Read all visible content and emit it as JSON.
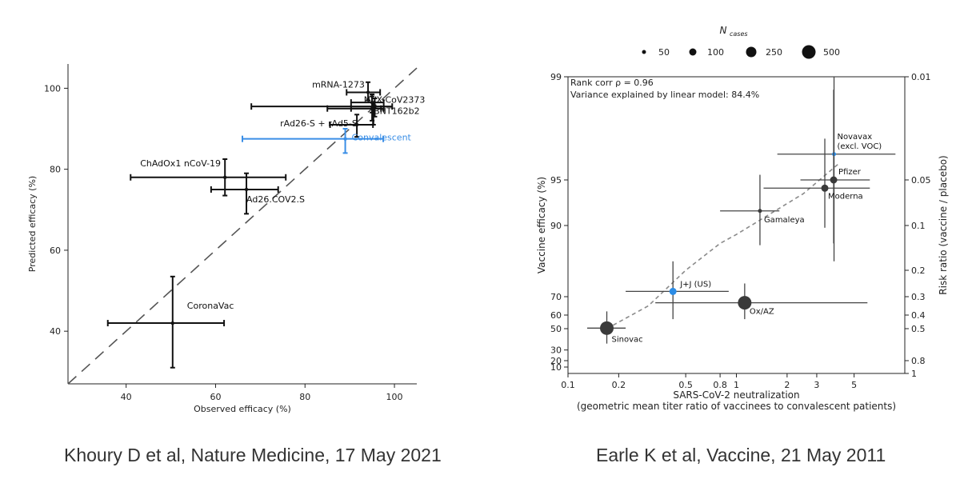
{
  "captions": {
    "left": "Khoury D et al, Nature Medicine, 17 May 2021",
    "right": "Earle K et al, Vaccine, 21 May 2011"
  },
  "chart_data": [
    {
      "type": "scatter",
      "title": "",
      "xlabel": "Observed efficacy (%)",
      "ylabel": "Predicted efficacy (%)",
      "xlim": [
        27,
        105
      ],
      "ylim": [
        27,
        106
      ],
      "xticks": [
        "40",
        "60",
        "80",
        "100"
      ],
      "yticks": [
        "40",
        "60",
        "80",
        "100"
      ],
      "grid": false,
      "diagonal": "y = x (dashed)",
      "points": [
        {
          "label": "mRNA-1273",
          "x": 94.1,
          "y": 99,
          "xerr": [
            89.3,
            96.8
          ],
          "yerr": [
            97,
            101.5
          ],
          "color": "#111111"
        },
        {
          "label": "",
          "x": 95,
          "y": 96.5,
          "xerr": [
            90.3,
            97.6
          ],
          "yerr": [
            94,
            98.5
          ],
          "color": "#111111"
        },
        {
          "label": "",
          "x": 95.6,
          "y": 95.5,
          "xerr": [
            68,
            99.5
          ],
          "yerr": [
            93,
            97.5
          ],
          "color": "#111111"
        },
        {
          "label": "NVX-CoV2373",
          "x": 95.3,
          "y": 95,
          "xerr": [
            85,
            97
          ],
          "yerr": [
            91,
            96.5
          ],
          "color": "#111111"
        },
        {
          "label": "BNT162b2",
          "x": 95,
          "y": 95,
          "xerr": [
            90.3,
            97.6
          ],
          "yerr": [
            92,
            98
          ],
          "color": "#111111"
        },
        {
          "label": "rAd26-S + rAd5-S",
          "x": 91.6,
          "y": 91,
          "xerr": [
            85.6,
            95.2
          ],
          "yerr": [
            88,
            93.5
          ],
          "color": "#111111"
        },
        {
          "label": "Convalescent",
          "x": 89,
          "y": 87.5,
          "xerr": [
            66,
            97.5
          ],
          "yerr": [
            84,
            90
          ],
          "color": "#3a8ee6"
        },
        {
          "label": "ChAdOx1 nCoV-19",
          "x": 62.1,
          "y": 78,
          "xerr": [
            41,
            75.7
          ],
          "yerr": [
            73.5,
            82.5
          ],
          "color": "#111111"
        },
        {
          "label": "Ad26.COV2.S",
          "x": 66.9,
          "y": 75,
          "xerr": [
            59,
            74
          ],
          "yerr": [
            69,
            79
          ],
          "color": "#111111"
        },
        {
          "label": "CoronaVac",
          "x": 50.4,
          "y": 42,
          "xerr": [
            35.9,
            61.9
          ],
          "yerr": [
            31,
            53.5
          ],
          "color": "#111111"
        }
      ]
    },
    {
      "type": "scatter",
      "title": "",
      "xlabel": "SARS-CoV-2 neutralization",
      "xlabel2": "(geometric mean titer ratio of vaccinees to convalescent patients)",
      "ylabel": "Vaccine efficacy (%)",
      "ylabel_right": "Risk ratio (vaccine / placebo)",
      "x_scale": "log",
      "xlim": [
        0.1,
        10
      ],
      "xticks": [
        "0.1",
        "0.2",
        "0.5",
        "0.8",
        "1",
        "2",
        "3",
        "5"
      ],
      "ylim": [
        0,
        99
      ],
      "yticks_left": [
        "99",
        "95",
        "90",
        "70",
        "60",
        "50",
        "30",
        "20",
        "10"
      ],
      "yticks_right": [
        "0.01",
        "0.05",
        "0.1",
        "0.2",
        "0.3",
        "0.4",
        "0.5",
        "0.8",
        "1"
      ],
      "legend_title": "N",
      "legend_title_sub": "cases",
      "legend_position": "top (above plot)",
      "legend_sizes": [
        "50",
        "100",
        "250",
        "500"
      ],
      "annotations": [
        "Rank corr ρ = 0.96",
        "Variance explained by linear model: 84.4%"
      ],
      "fit_line": [
        [
          0.17,
          50
        ],
        [
          0.3,
          65
        ],
        [
          0.5,
          80
        ],
        [
          0.8,
          86
        ],
        [
          1.0,
          88
        ],
        [
          1.5,
          91
        ],
        [
          2.5,
          93.5
        ],
        [
          4.0,
          95.6
        ]
      ],
      "points": [
        {
          "label": "Novavax\n(excl. VOC)",
          "x": 3.8,
          "y": 96,
          "xerr": [
            1.75,
            8.8
          ],
          "yerr": [
            82,
            99
          ],
          "size": "50",
          "color": "#2b8ce6"
        },
        {
          "label": "Pfizer",
          "x": 3.78,
          "y": 95,
          "xerr": [
            2.4,
            6.2
          ],
          "yerr": [
            86,
            98.5
          ],
          "size": "100",
          "color": "#3a3a3a"
        },
        {
          "label": "Moderna",
          "x": 3.35,
          "y": 94.1,
          "xerr": [
            1.45,
            6.2
          ],
          "yerr": [
            89.5,
            96.6
          ],
          "size": "100",
          "color": "#3a3a3a"
        },
        {
          "label": "Gamaleya",
          "x": 1.38,
          "y": 91.6,
          "xerr": [
            0.8,
            1.8
          ],
          "yerr": [
            85.6,
            95.2
          ],
          "size": "50",
          "color": "#3a3a3a"
        },
        {
          "label": "J+J (US)",
          "x": 0.42,
          "y": 72,
          "xerr": [
            0.22,
            0.9
          ],
          "yerr": [
            57,
            82
          ],
          "size": "100",
          "color": "#2b8ce6"
        },
        {
          "label": "Ox/AZ",
          "x": 1.12,
          "y": 66.7,
          "xerr": [
            0.33,
            6.0
          ],
          "yerr": [
            57,
            75
          ],
          "size": "500",
          "color": "#3a3a3a"
        },
        {
          "label": "Sinovac",
          "x": 0.17,
          "y": 50.4,
          "xerr": [
            0.13,
            0.22
          ],
          "yerr": [
            36,
            62
          ],
          "size": "500",
          "color": "#3a3a3a"
        }
      ]
    }
  ]
}
